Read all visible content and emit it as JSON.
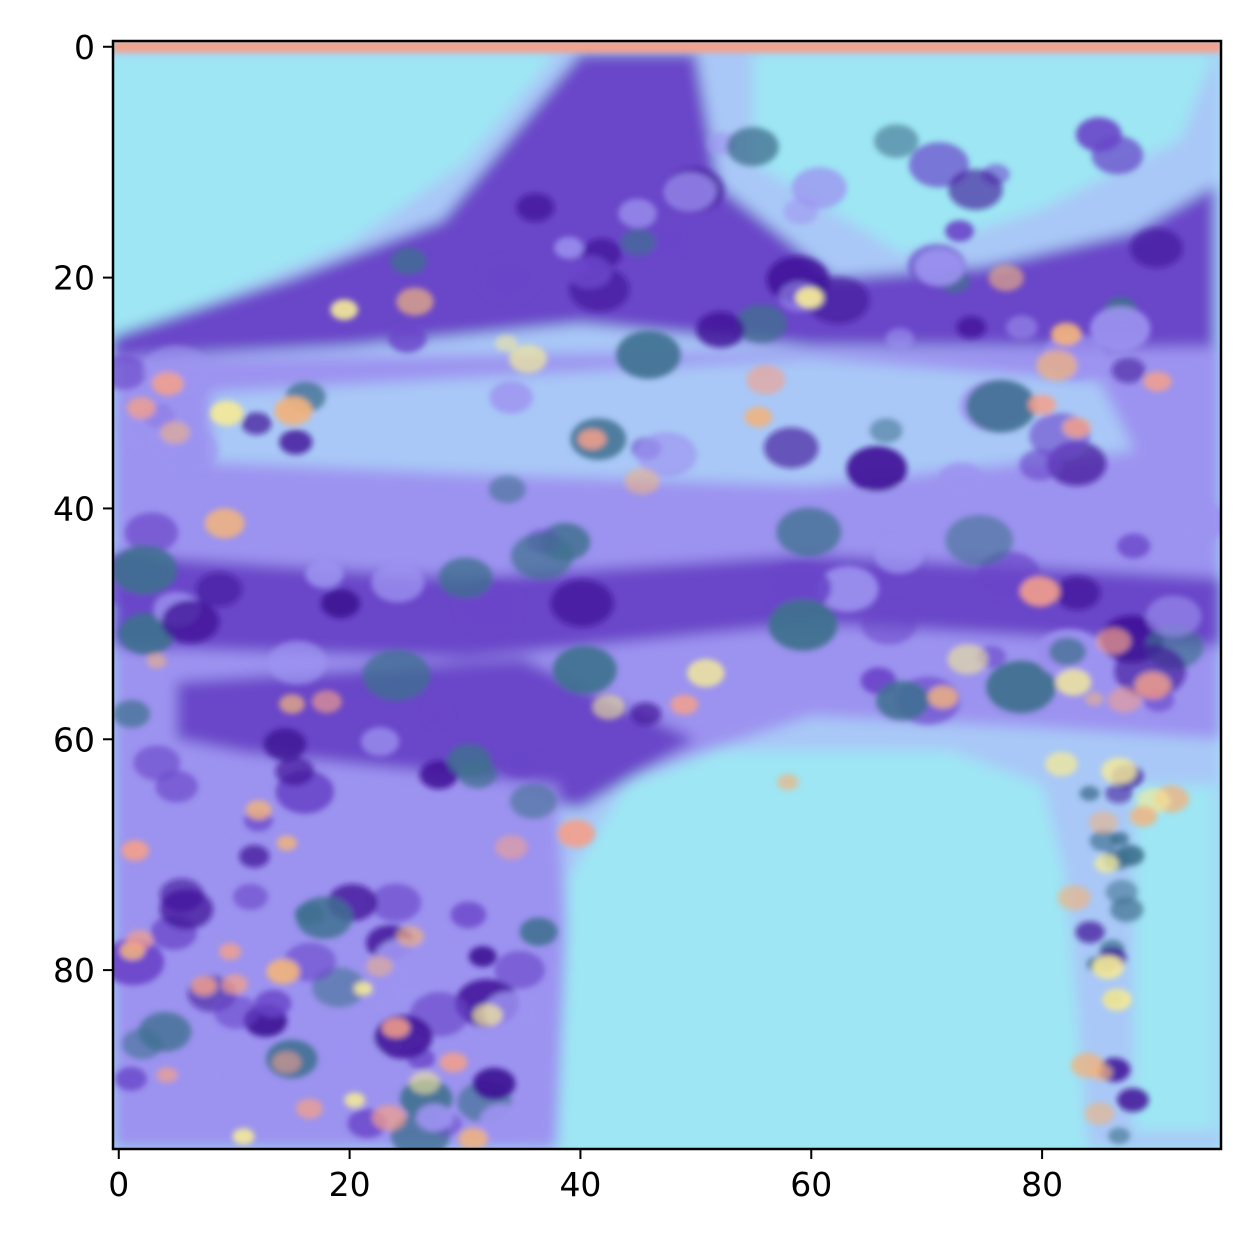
{
  "chart_data": {
    "type": "heatmap",
    "title": "",
    "xlabel": "",
    "ylabel": "",
    "description_of_content": "",
    "image_grid": {
      "rows": 96,
      "cols": 96
    },
    "xlim": [
      -0.5,
      95.5
    ],
    "ylim": [
      95.5,
      -0.5
    ],
    "x_ticks": [
      0,
      20,
      40,
      60,
      80
    ],
    "x_tick_labels": [
      "0",
      "20",
      "40",
      "60",
      "80"
    ],
    "y_ticks": [
      0,
      20,
      40,
      60,
      80
    ],
    "y_tick_labels": [
      "0",
      "20",
      "40",
      "60",
      "80"
    ],
    "grid": false,
    "legend": "none",
    "colors": {
      "sky": "#9ee6f4",
      "light_blue": "#a9c8f7",
      "lavender": "#9c93f0",
      "purple": "#6a46c9",
      "deep_purple": "#3f1396",
      "teal": "#3f708f",
      "yellow": "#f4ea98",
      "orange": "#f0b37e",
      "salmon": "#f4a08a",
      "red": "#a4311f",
      "axis": "#000000"
    }
  }
}
